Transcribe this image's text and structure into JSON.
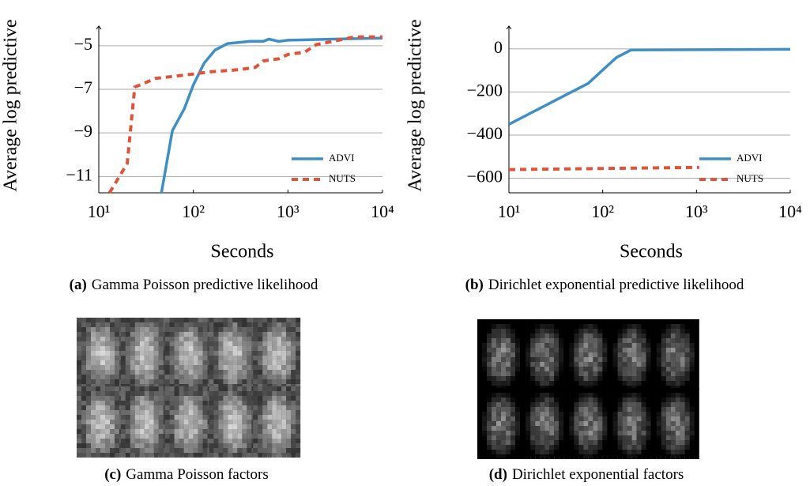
{
  "chart_data": [
    {
      "type": "line",
      "caption": {
        "label": "(a)",
        "text": "Gamma Poisson predictive likelihood"
      },
      "ylabel": "Average log predictive",
      "xlabel": "Seconds",
      "xscale": "log",
      "grid": true,
      "legend": "lower right",
      "xlim": [
        10,
        10000
      ],
      "ylim": [
        -11.75,
        -4.1
      ],
      "xticks": [
        {
          "value": 10,
          "label": "10¹"
        },
        {
          "value": 100,
          "label": "10²"
        },
        {
          "value": 1000,
          "label": "10³"
        },
        {
          "value": 10000,
          "label": "10⁴"
        }
      ],
      "yticks": [
        {
          "value": -5,
          "label": "−5"
        },
        {
          "value": -7,
          "label": "−7"
        },
        {
          "value": -9,
          "label": "−9"
        },
        {
          "value": -11,
          "label": "−11"
        }
      ],
      "series": [
        {
          "name": "ADVI",
          "color": "#3f8fc4",
          "dash": false,
          "x": [
            46,
            60,
            80,
            100,
            130,
            170,
            230,
            400,
            550,
            630,
            800,
            1000,
            3000,
            10000
          ],
          "values": [
            -11.75,
            -8.9,
            -7.9,
            -6.8,
            -5.8,
            -5.2,
            -4.9,
            -4.8,
            -4.8,
            -4.7,
            -4.8,
            -4.75,
            -4.7,
            -4.65
          ]
        },
        {
          "name": "NUTS",
          "color": "#e0533b",
          "dash": true,
          "x": [
            13,
            20,
            24,
            40,
            100,
            150,
            300,
            450,
            550,
            800,
            1000,
            1500,
            2000,
            3000,
            5000,
            10000
          ],
          "values": [
            -11.75,
            -10.4,
            -6.9,
            -6.5,
            -6.3,
            -6.2,
            -6.1,
            -6.0,
            -5.7,
            -5.6,
            -5.4,
            -5.3,
            -4.95,
            -4.8,
            -4.6,
            -4.6
          ]
        }
      ]
    },
    {
      "type": "line",
      "caption": {
        "label": "(b)",
        "text": "Dirichlet exponential predictive likelihood"
      },
      "ylabel": "Average log predictive",
      "xlabel": "Seconds",
      "xscale": "log",
      "grid": true,
      "legend": "lower right",
      "xlim": [
        10,
        10000
      ],
      "ylim": [
        -668,
        106
      ],
      "xticks": [
        {
          "value": 10,
          "label": "10¹"
        },
        {
          "value": 100,
          "label": "10²"
        },
        {
          "value": 1000,
          "label": "10³"
        },
        {
          "value": 10000,
          "label": "10⁴"
        }
      ],
      "yticks": [
        0,
        {
          "value": -200,
          "label": "−200"
        },
        {
          "value": -400,
          "label": "−400"
        },
        {
          "value": -600,
          "label": "−600"
        }
      ],
      "series": [
        {
          "name": "ADVI",
          "color": "#3f8fc4",
          "dash": false,
          "x": [
            10,
            70,
            140,
            200,
            10000
          ],
          "values": [
            -350,
            -160,
            -40,
            -5,
            -2
          ]
        },
        {
          "name": "NUTS",
          "color": "#e0533b",
          "dash": true,
          "x": [
            10,
            1070
          ],
          "values": [
            -560,
            -550
          ]
        }
      ]
    }
  ],
  "figures": [
    {
      "caption": {
        "label": "(c)",
        "text": "Gamma Poisson factors"
      }
    },
    {
      "caption": {
        "label": "(d)",
        "text": "Dirichlet exponential factors"
      }
    }
  ]
}
